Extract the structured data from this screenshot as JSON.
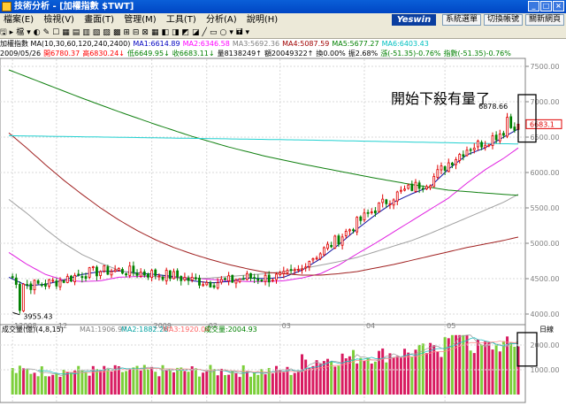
{
  "window": {
    "title": "技術分析 - [加權指數 $TWT]",
    "buttons": [
      "_",
      "□",
      "×"
    ]
  },
  "menu": {
    "items": [
      "檔案(E)",
      "檢視(V)",
      "畫面(T)",
      "管理(M)",
      "工具(T)",
      "分析(A)",
      "說明(H)"
    ]
  },
  "brand": "Yeswin",
  "top_buttons": [
    "系統選單",
    "切換帳號",
    "關新網頁"
  ],
  "toolbar": {
    "items": [
      "🖫",
      "▸",
      "檔",
      "▾",
      "◐",
      "✎",
      "☐",
      "▦",
      "▤",
      "▥",
      "▧",
      "▨",
      "▩",
      "⊞",
      "⊟",
      "⊠",
      "▦",
      "◧",
      "◨",
      "◩",
      "◪",
      "╱",
      "▭",
      "○",
      "▾",
      "🖬",
      "▾"
    ]
  },
  "info_line1": [
    {
      "text": "加權指數 MA(10,30,60,120,240,2400)",
      "color": "#000000"
    },
    {
      "text": "MA1:6614.89",
      "color": "#0000c0"
    },
    {
      "text": "MA2:6346.58",
      "color": "#ff00ff"
    },
    {
      "text": "MA3:5692.36",
      "color": "#808080"
    },
    {
      "text": "MA4:5087.59",
      "color": "#a00000"
    },
    {
      "text": "MA5:5677.27",
      "color": "#008000"
    },
    {
      "text": "MA6:6403.43",
      "color": "#00c0c0"
    }
  ],
  "info_line2": [
    {
      "text": "2009/05/26",
      "color": "#000000"
    },
    {
      "text": "開6780.37",
      "color": "#ff0000"
    },
    {
      "text": "高6830.24↓",
      "color": "#ff0000"
    },
    {
      "text": "低6649.95↓",
      "color": "#008000"
    },
    {
      "text": "收6683.11↓",
      "color": "#008000"
    },
    {
      "text": "量8138249↑",
      "color": "#000000"
    },
    {
      "text": "額20049322↑",
      "color": "#000000"
    },
    {
      "text": "換0.00%",
      "color": "#000000"
    },
    {
      "text": "振2.68%",
      "color": "#000000"
    },
    {
      "text": "漲(-51.35)-0.76%",
      "color": "#008000"
    },
    {
      "text": "指數(-51.35)-0.76%",
      "color": "#008000"
    }
  ],
  "annotation": "開始下殺有量了",
  "chart_data": {
    "type": "candlestick",
    "ylim": [
      3900,
      7600
    ],
    "yticks": [
      4000,
      4500,
      5000,
      5500,
      6000,
      6500,
      7000,
      7500
    ],
    "y_axis_unit": "",
    "x_labels": [
      {
        "label": "12008",
        "i": 1
      },
      {
        "label": "12",
        "i": 13
      },
      {
        "label": "2009",
        "i": 39
      },
      {
        "label": "02",
        "i": 54
      },
      {
        "label": "03",
        "i": 74
      },
      {
        "label": "04",
        "i": 97
      },
      {
        "label": "05",
        "i": 119
      }
    ],
    "n_bars": 140,
    "low_label": "3955.43",
    "high_label": "6878.66",
    "last_price": "6683.1",
    "ma": [
      {
        "name": "MA1",
        "color": "#1010a0",
        "points": [
          [
            0,
            4520
          ],
          [
            5,
            4400
          ],
          [
            10,
            4420
          ],
          [
            15,
            4480
          ],
          [
            20,
            4560
          ],
          [
            25,
            4600
          ],
          [
            30,
            4610
          ],
          [
            35,
            4580
          ],
          [
            40,
            4560
          ],
          [
            45,
            4530
          ],
          [
            50,
            4470
          ],
          [
            55,
            4440
          ],
          [
            60,
            4460
          ],
          [
            65,
            4510
          ],
          [
            70,
            4500
          ],
          [
            75,
            4520
          ],
          [
            80,
            4620
          ],
          [
            85,
            4780
          ],
          [
            90,
            4980
          ],
          [
            95,
            5200
          ],
          [
            100,
            5400
          ],
          [
            105,
            5580
          ],
          [
            110,
            5700
          ],
          [
            115,
            5800
          ],
          [
            120,
            6050
          ],
          [
            125,
            6250
          ],
          [
            130,
            6350
          ],
          [
            135,
            6500
          ],
          [
            139,
            6615
          ]
        ]
      },
      {
        "name": "MA2",
        "color": "#e020e0",
        "points": [
          [
            0,
            4870
          ],
          [
            5,
            4700
          ],
          [
            10,
            4560
          ],
          [
            15,
            4480
          ],
          [
            20,
            4460
          ],
          [
            25,
            4470
          ],
          [
            30,
            4520
          ],
          [
            35,
            4530
          ],
          [
            40,
            4530
          ],
          [
            45,
            4520
          ],
          [
            50,
            4510
          ],
          [
            55,
            4490
          ],
          [
            60,
            4470
          ],
          [
            65,
            4460
          ],
          [
            70,
            4460
          ],
          [
            75,
            4470
          ],
          [
            80,
            4510
          ],
          [
            85,
            4570
          ],
          [
            90,
            4690
          ],
          [
            95,
            4850
          ],
          [
            100,
            5000
          ],
          [
            105,
            5160
          ],
          [
            110,
            5320
          ],
          [
            115,
            5480
          ],
          [
            120,
            5640
          ],
          [
            125,
            5850
          ],
          [
            130,
            6040
          ],
          [
            135,
            6200
          ],
          [
            139,
            6347
          ]
        ]
      },
      {
        "name": "MA3",
        "color": "#a0a0a0",
        "points": [
          [
            0,
            5620
          ],
          [
            5,
            5420
          ],
          [
            10,
            5200
          ],
          [
            15,
            5000
          ],
          [
            20,
            4840
          ],
          [
            25,
            4720
          ],
          [
            30,
            4620
          ],
          [
            35,
            4560
          ],
          [
            40,
            4530
          ],
          [
            45,
            4510
          ],
          [
            50,
            4500
          ],
          [
            55,
            4510
          ],
          [
            60,
            4530
          ],
          [
            65,
            4550
          ],
          [
            70,
            4570
          ],
          [
            75,
            4600
          ],
          [
            80,
            4640
          ],
          [
            85,
            4690
          ],
          [
            90,
            4740
          ],
          [
            95,
            4800
          ],
          [
            100,
            4880
          ],
          [
            105,
            4960
          ],
          [
            110,
            5040
          ],
          [
            115,
            5140
          ],
          [
            120,
            5250
          ],
          [
            125,
            5360
          ],
          [
            130,
            5470
          ],
          [
            135,
            5580
          ],
          [
            139,
            5692
          ]
        ]
      },
      {
        "name": "MA4",
        "color": "#a02020",
        "points": [
          [
            0,
            6560
          ],
          [
            5,
            6340
          ],
          [
            10,
            6110
          ],
          [
            15,
            5890
          ],
          [
            20,
            5690
          ],
          [
            25,
            5500
          ],
          [
            30,
            5330
          ],
          [
            35,
            5180
          ],
          [
            40,
            5050
          ],
          [
            45,
            4940
          ],
          [
            50,
            4850
          ],
          [
            55,
            4770
          ],
          [
            60,
            4700
          ],
          [
            65,
            4640
          ],
          [
            70,
            4590
          ],
          [
            75,
            4570
          ],
          [
            80,
            4550
          ],
          [
            85,
            4550
          ],
          [
            90,
            4570
          ],
          [
            95,
            4600
          ],
          [
            100,
            4650
          ],
          [
            105,
            4700
          ],
          [
            110,
            4760
          ],
          [
            115,
            4820
          ],
          [
            120,
            4880
          ],
          [
            125,
            4940
          ],
          [
            130,
            4990
          ],
          [
            135,
            5040
          ],
          [
            139,
            5088
          ]
        ]
      },
      {
        "name": "MA5",
        "color": "#108010",
        "points": [
          [
            0,
            7450
          ],
          [
            10,
            7250
          ],
          [
            20,
            7050
          ],
          [
            30,
            6860
          ],
          [
            40,
            6680
          ],
          [
            50,
            6510
          ],
          [
            60,
            6360
          ],
          [
            70,
            6230
          ],
          [
            80,
            6120
          ],
          [
            90,
            6020
          ],
          [
            100,
            5920
          ],
          [
            110,
            5830
          ],
          [
            120,
            5750
          ],
          [
            130,
            5710
          ],
          [
            139,
            5677
          ]
        ]
      },
      {
        "name": "MA6",
        "color": "#20d0d0",
        "points": [
          [
            0,
            6520
          ],
          [
            40,
            6490
          ],
          [
            80,
            6460
          ],
          [
            110,
            6430
          ],
          [
            139,
            6403
          ]
        ]
      }
    ],
    "volume": {
      "title": "成交量(億)(4,8,15)",
      "ylim": [
        0,
        2500
      ],
      "yticks": [
        1000,
        2000
      ],
      "ma_labels": [
        {
          "text": "MA1:1906.97",
          "color": "#808080"
        },
        {
          "text": "MA2:1882.26",
          "color": "#00a0a0"
        },
        {
          "text": "MA3:1920.04",
          "color": "#ff6666"
        },
        {
          "text": "成交量:2004.93",
          "color": "#008000"
        }
      ],
      "axis_unit": "日線"
    }
  }
}
